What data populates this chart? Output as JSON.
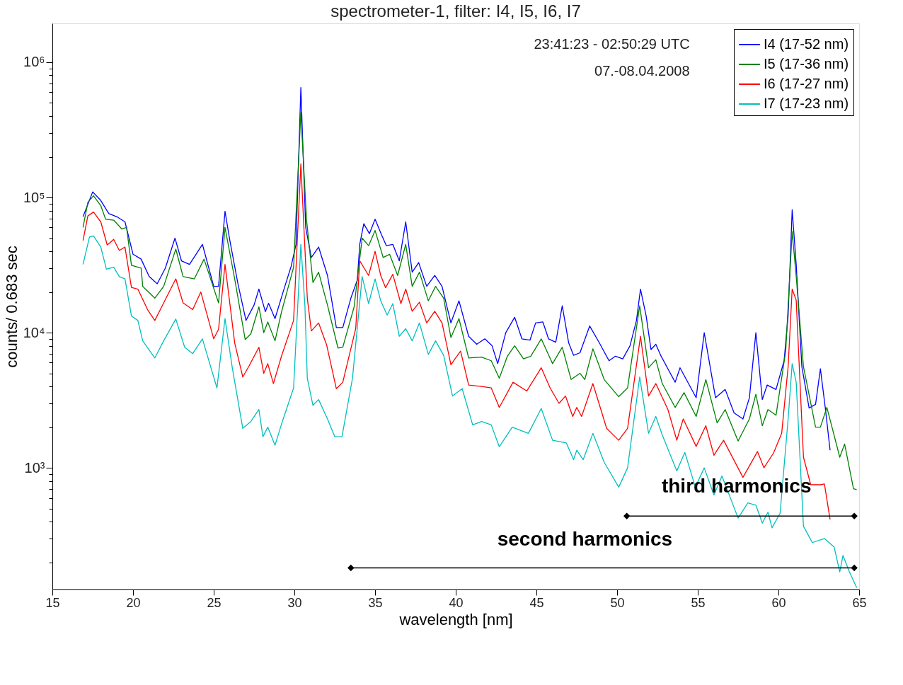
{
  "chart_data": {
    "type": "line",
    "title": "spectrometer-1, filter: I4, I5, I6, I7",
    "xlabel": "wavelength [nm]",
    "ylabel": "counts/ 0.683 sec",
    "log": "y",
    "grid": false,
    "legend": "top right",
    "line_style": "solid",
    "marker": "none",
    "xlim": [
      15,
      65
    ],
    "xticks": [
      15,
      20,
      25,
      30,
      35,
      40,
      45,
      50,
      55,
      60,
      65
    ],
    "ylim": [
      126,
      1940000
    ],
    "yticks": [
      {
        "value": 200,
        "label": null
      },
      {
        "value": 300,
        "label": null
      },
      {
        "value": 400,
        "label": null
      },
      {
        "value": 500,
        "label": null
      },
      {
        "value": 600,
        "label": null
      },
      {
        "value": 700,
        "label": null
      },
      {
        "value": 800,
        "label": null
      },
      {
        "value": 900,
        "label": null
      },
      {
        "value": 1000,
        "label": "10³"
      },
      {
        "value": 2000,
        "label": null
      },
      {
        "value": 3000,
        "label": null
      },
      {
        "value": 4000,
        "label": null
      },
      {
        "value": 5000,
        "label": null
      },
      {
        "value": 6000,
        "label": null
      },
      {
        "value": 7000,
        "label": null
      },
      {
        "value": 8000,
        "label": null
      },
      {
        "value": 9000,
        "label": null
      },
      {
        "value": 10000,
        "label": "10⁴"
      },
      {
        "value": 20000,
        "label": null
      },
      {
        "value": 30000,
        "label": null
      },
      {
        "value": 40000,
        "label": null
      },
      {
        "value": 50000,
        "label": null
      },
      {
        "value": 60000,
        "label": null
      },
      {
        "value": 70000,
        "label": null
      },
      {
        "value": 80000,
        "label": null
      },
      {
        "value": 90000,
        "label": null
      },
      {
        "value": 100000,
        "label": "10⁵"
      },
      {
        "value": 200000,
        "label": null
      },
      {
        "value": 300000,
        "label": null
      },
      {
        "value": 400000,
        "label": null
      },
      {
        "value": 500000,
        "label": null
      },
      {
        "value": 600000,
        "label": null
      },
      {
        "value": 700000,
        "label": null
      },
      {
        "value": 800000,
        "label": null
      },
      {
        "value": 900000,
        "label": null
      },
      {
        "value": 1000000,
        "label": "10⁶"
      }
    ],
    "annotations": [
      "23:41:23 - 02:50:29 UTC",
      "07.-08.04.2008",
      "third harmonics",
      "second harmonics"
    ],
    "series": [
      {
        "name": "I4 (17-52 nm)",
        "color": "#0000ff",
        "x": [
          16.9,
          17.5,
          18.0,
          18.5,
          19.0,
          19.5,
          20.0,
          20.5,
          21.0,
          21.5,
          22.0,
          22.6,
          23.0,
          23.5,
          24.3,
          25.0,
          25.3,
          25.7,
          26.0,
          26.5,
          27.0,
          27.5,
          27.8,
          28.2,
          28.4,
          28.8,
          29.3,
          29.8,
          30.1,
          30.4,
          30.7,
          31.05,
          31.5,
          32.05,
          32.6,
          33.0,
          33.5,
          33.9,
          34.05,
          34.3,
          34.65,
          35.0,
          35.4,
          35.7,
          36.1,
          36.5,
          36.9,
          37.3,
          37.7,
          38.2,
          38.7,
          39.15,
          39.7,
          40.2,
          40.8,
          41.3,
          41.8,
          42.25,
          42.6,
          43.1,
          43.65,
          44.1,
          44.6,
          44.95,
          45.4,
          45.75,
          46.2,
          46.6,
          47.0,
          47.3,
          47.7,
          48.3,
          48.9,
          49.5,
          49.9,
          50.35,
          50.8,
          51.2,
          51.45,
          51.8,
          52.1,
          52.4,
          52.7,
          53.15,
          53.6,
          53.9,
          54.9,
          55.4,
          56.1,
          56.7,
          57.25,
          57.8,
          58.2,
          58.6,
          59.0,
          59.3,
          59.85,
          60.35,
          60.6,
          60.85,
          61.1,
          61.45,
          61.9,
          62.3,
          62.6,
          62.9,
          63.2
        ],
        "values": [
          72000,
          110000,
          95000,
          76000,
          72000,
          66000,
          38000,
          35000,
          26000,
          23000,
          30000,
          50000,
          34000,
          32000,
          45000,
          22000,
          22000,
          79000,
          48000,
          23000,
          12300,
          16000,
          21000,
          14300,
          16500,
          12700,
          20000,
          31000,
          45000,
          650000,
          60000,
          36000,
          43000,
          26500,
          10900,
          10900,
          18000,
          24500,
          45000,
          64000,
          54000,
          69000,
          53000,
          44000,
          45000,
          34000,
          66000,
          28000,
          33000,
          22000,
          26500,
          22000,
          11800,
          17200,
          9400,
          8200,
          9000,
          8000,
          5900,
          10000,
          13000,
          9000,
          8800,
          11800,
          12000,
          9000,
          8500,
          15800,
          8400,
          6800,
          7100,
          11200,
          8400,
          6200,
          6700,
          6400,
          8000,
          12300,
          21000,
          13300,
          7500,
          8200,
          6800,
          5400,
          4300,
          5500,
          3300,
          10000,
          3300,
          3800,
          2550,
          2300,
          3300,
          10000,
          3200,
          4100,
          3800,
          6200,
          13400,
          81000,
          32000,
          5600,
          2770,
          2950,
          5400,
          2800,
          1350
        ]
      },
      {
        "name": "I5 (17-36 nm)",
        "color": "#008000",
        "x": [
          16.9,
          17.2,
          17.55,
          18.0,
          18.3,
          18.8,
          19.3,
          19.6,
          19.9,
          20.5,
          20.6,
          21.35,
          21.9,
          22.65,
          23.1,
          23.8,
          24.4,
          25.3,
          25.7,
          26.3,
          26.95,
          27.3,
          27.8,
          28.1,
          28.35,
          28.8,
          29.2,
          29.95,
          30.4,
          30.75,
          31.15,
          31.5,
          32.05,
          32.7,
          33.0,
          33.7,
          34.2,
          34.6,
          35.0,
          35.5,
          35.9,
          36.4,
          36.9,
          37.3,
          37.75,
          38.3,
          38.75,
          39.25,
          39.7,
          40.2,
          40.8,
          41.6,
          42.2,
          42.7,
          43.2,
          43.65,
          44.2,
          44.65,
          45.3,
          46.0,
          46.6,
          47.15,
          47.7,
          48.0,
          48.5,
          49.2,
          50.1,
          50.65,
          51.4,
          51.95,
          52.4,
          52.8,
          53.6,
          54.15,
          54.9,
          55.5,
          56.2,
          56.7,
          57.5,
          58.2,
          58.6,
          59.0,
          59.35,
          59.85,
          60.45,
          60.85,
          61.1,
          61.55,
          62.3,
          62.6,
          63.0,
          63.8,
          64.1,
          64.65,
          64.85
        ],
        "values": [
          60000,
          92000,
          103000,
          87000,
          69000,
          68000,
          58500,
          60000,
          31500,
          30000,
          22000,
          18000,
          22000,
          41500,
          26000,
          25000,
          35000,
          16600,
          60000,
          25000,
          8900,
          9800,
          15500,
          10000,
          12000,
          8700,
          14200,
          30500,
          425000,
          69000,
          23500,
          28000,
          16000,
          7700,
          7800,
          15500,
          50000,
          44000,
          57000,
          36000,
          38000,
          26500,
          45000,
          22000,
          28000,
          17200,
          22000,
          18000,
          9200,
          12700,
          6500,
          6600,
          6200,
          4600,
          6700,
          8000,
          6400,
          6700,
          9000,
          5900,
          7800,
          4500,
          5000,
          4500,
          7600,
          4500,
          3360,
          3900,
          15800,
          5500,
          6300,
          4200,
          2800,
          3600,
          2400,
          4500,
          2150,
          2700,
          1580,
          2300,
          3500,
          2050,
          2700,
          2450,
          7300,
          56000,
          26000,
          5600,
          2000,
          2000,
          2800,
          1200,
          1500,
          700,
          690
        ]
      },
      {
        "name": "I6 (17-27 nm)",
        "color": "#ff0000",
        "x": [
          16.9,
          17.2,
          17.55,
          18.0,
          18.4,
          18.8,
          19.15,
          19.5,
          19.9,
          20.3,
          20.9,
          21.35,
          21.9,
          22.65,
          23.1,
          23.7,
          24.2,
          25.0,
          25.3,
          25.7,
          26.3,
          26.8,
          27.2,
          27.8,
          28.1,
          28.35,
          28.7,
          29.2,
          29.95,
          30.4,
          30.8,
          31.05,
          31.5,
          32.0,
          32.6,
          33.0,
          33.8,
          34.05,
          34.6,
          35.0,
          35.35,
          35.65,
          36.1,
          36.6,
          36.9,
          37.3,
          37.75,
          38.2,
          38.7,
          39.15,
          39.7,
          40.3,
          40.8,
          41.6,
          42.2,
          42.7,
          43.55,
          44.4,
          45.3,
          45.85,
          46.4,
          46.8,
          47.25,
          47.5,
          47.8,
          48.5,
          49.35,
          50.1,
          50.65,
          51.45,
          51.95,
          52.4,
          53.15,
          53.7,
          54.1,
          54.9,
          55.5,
          56.0,
          56.6,
          57.8,
          58.7,
          59.1,
          59.7,
          60.2,
          60.6,
          60.85,
          61.1,
          61.55,
          62.0,
          62.6,
          62.85,
          63.2
        ],
        "values": [
          48000,
          73000,
          78000,
          66000,
          44500,
          49000,
          40500,
          43000,
          21600,
          21000,
          14800,
          12300,
          16600,
          25000,
          16600,
          14800,
          20000,
          9000,
          10600,
          32000,
          8400,
          4700,
          5700,
          7800,
          5000,
          5900,
          4200,
          6700,
          12300,
          177000,
          18000,
          10300,
          11800,
          8100,
          3850,
          4300,
          10700,
          34000,
          26500,
          40000,
          26500,
          21500,
          27000,
          16400,
          21000,
          14400,
          16800,
          11800,
          14400,
          11800,
          5800,
          7300,
          4100,
          4000,
          3900,
          2800,
          4300,
          3700,
          5500,
          3900,
          3000,
          3400,
          2400,
          2800,
          2400,
          4200,
          1960,
          1600,
          1960,
          9400,
          3400,
          4200,
          2700,
          1600,
          2300,
          1440,
          2050,
          1240,
          1600,
          850,
          1320,
          1000,
          1290,
          1800,
          5600,
          21000,
          17400,
          1200,
          750,
          750,
          760,
          415
        ]
      },
      {
        "name": "I7 (17-23 nm)",
        "color": "#00bfbf",
        "x": [
          16.9,
          17.3,
          17.55,
          18.0,
          18.35,
          18.8,
          19.15,
          19.5,
          19.9,
          20.3,
          20.6,
          21.35,
          21.9,
          22.65,
          23.2,
          23.7,
          24.3,
          25.2,
          25.7,
          26.15,
          26.8,
          27.3,
          27.8,
          28.05,
          28.35,
          28.8,
          29.2,
          29.95,
          30.4,
          30.65,
          30.8,
          31.15,
          31.5,
          32.05,
          32.5,
          32.95,
          33.6,
          34.2,
          34.6,
          35.0,
          35.35,
          35.75,
          36.1,
          36.5,
          36.9,
          37.3,
          37.75,
          38.3,
          38.75,
          39.25,
          39.8,
          40.4,
          41.05,
          41.6,
          42.2,
          42.7,
          43.5,
          44.5,
          45.3,
          46.0,
          46.85,
          47.3,
          47.5,
          47.9,
          48.5,
          49.2,
          50.1,
          50.65,
          51.4,
          51.95,
          52.4,
          52.8,
          53.7,
          54.2,
          54.85,
          55.4,
          56.0,
          56.5,
          57.5,
          58.1,
          58.6,
          59.0,
          59.35,
          59.6,
          60.1,
          60.6,
          60.85,
          61.1,
          61.55,
          62.1,
          62.85,
          63.45,
          63.8,
          64.0,
          64.4,
          64.85
        ],
        "values": [
          32000,
          51000,
          52000,
          43000,
          29500,
          30500,
          26000,
          25000,
          13300,
          12300,
          8700,
          6500,
          8700,
          12600,
          7800,
          7000,
          9000,
          3900,
          12700,
          5500,
          1960,
          2200,
          2700,
          1700,
          2000,
          1470,
          2100,
          3900,
          45000,
          16000,
          4600,
          2900,
          3200,
          2300,
          1700,
          1700,
          4600,
          26000,
          16400,
          25000,
          17200,
          13500,
          16400,
          9400,
          10700,
          8700,
          11800,
          6900,
          8700,
          6800,
          3400,
          3850,
          2080,
          2200,
          2080,
          1430,
          2000,
          1800,
          2750,
          1600,
          1530,
          1150,
          1350,
          1150,
          1800,
          1100,
          720,
          1000,
          4700,
          1800,
          2400,
          1750,
          950,
          1300,
          720,
          1000,
          630,
          870,
          425,
          550,
          530,
          390,
          470,
          360,
          460,
          2300,
          5900,
          4300,
          370,
          280,
          300,
          260,
          170,
          225,
          170,
          130
        ]
      },
      {
        "type": "line",
        "color": "#000000",
        "marker": "diamond",
        "x": [
          50.6,
          64.7
        ],
        "values": [
          440,
          440
        ]
      },
      {
        "type": "line",
        "color": "#000000",
        "marker": "diamond",
        "x": [
          33.5,
          64.7
        ],
        "values": [
          182,
          182
        ]
      }
    ]
  }
}
